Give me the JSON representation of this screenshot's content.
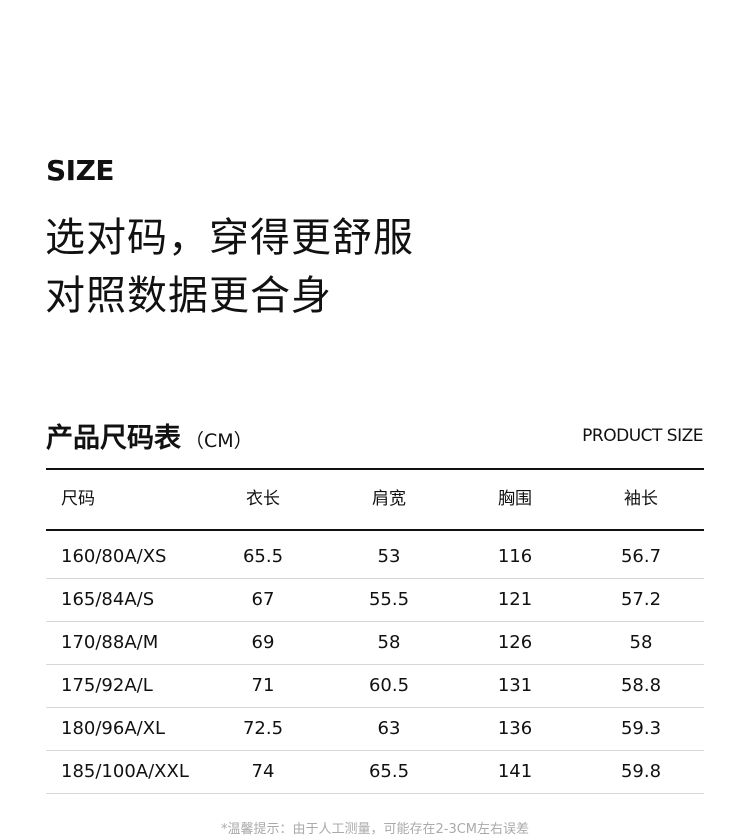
{
  "header": {
    "size_label": "SIZE",
    "slogan_line1": "选对码，穿得更舒服",
    "slogan_line2": "对照数据更合身"
  },
  "table": {
    "title": "产品尺码表",
    "unit": "（CM）",
    "english_title": "PRODUCT SIZE",
    "columns": [
      "尺码",
      "衣长",
      "肩宽",
      "胸围",
      "袖长"
    ],
    "rows": [
      [
        "160/80A/XS",
        "65.5",
        "53",
        "116",
        "56.7"
      ],
      [
        "165/84A/S",
        "67",
        "55.5",
        "121",
        "57.2"
      ],
      [
        "170/88A/M",
        "69",
        "58",
        "126",
        "58"
      ],
      [
        "175/92A/L",
        "71",
        "60.5",
        "131",
        "58.8"
      ],
      [
        "180/96A/XL",
        "72.5",
        "63",
        "136",
        "59.3"
      ],
      [
        "185/100A/XXL",
        "74",
        "65.5",
        "141",
        "59.8"
      ]
    ]
  },
  "footer": {
    "note": "*温馨提示：由于人工测量，可能存在2-3CM左右误差"
  }
}
